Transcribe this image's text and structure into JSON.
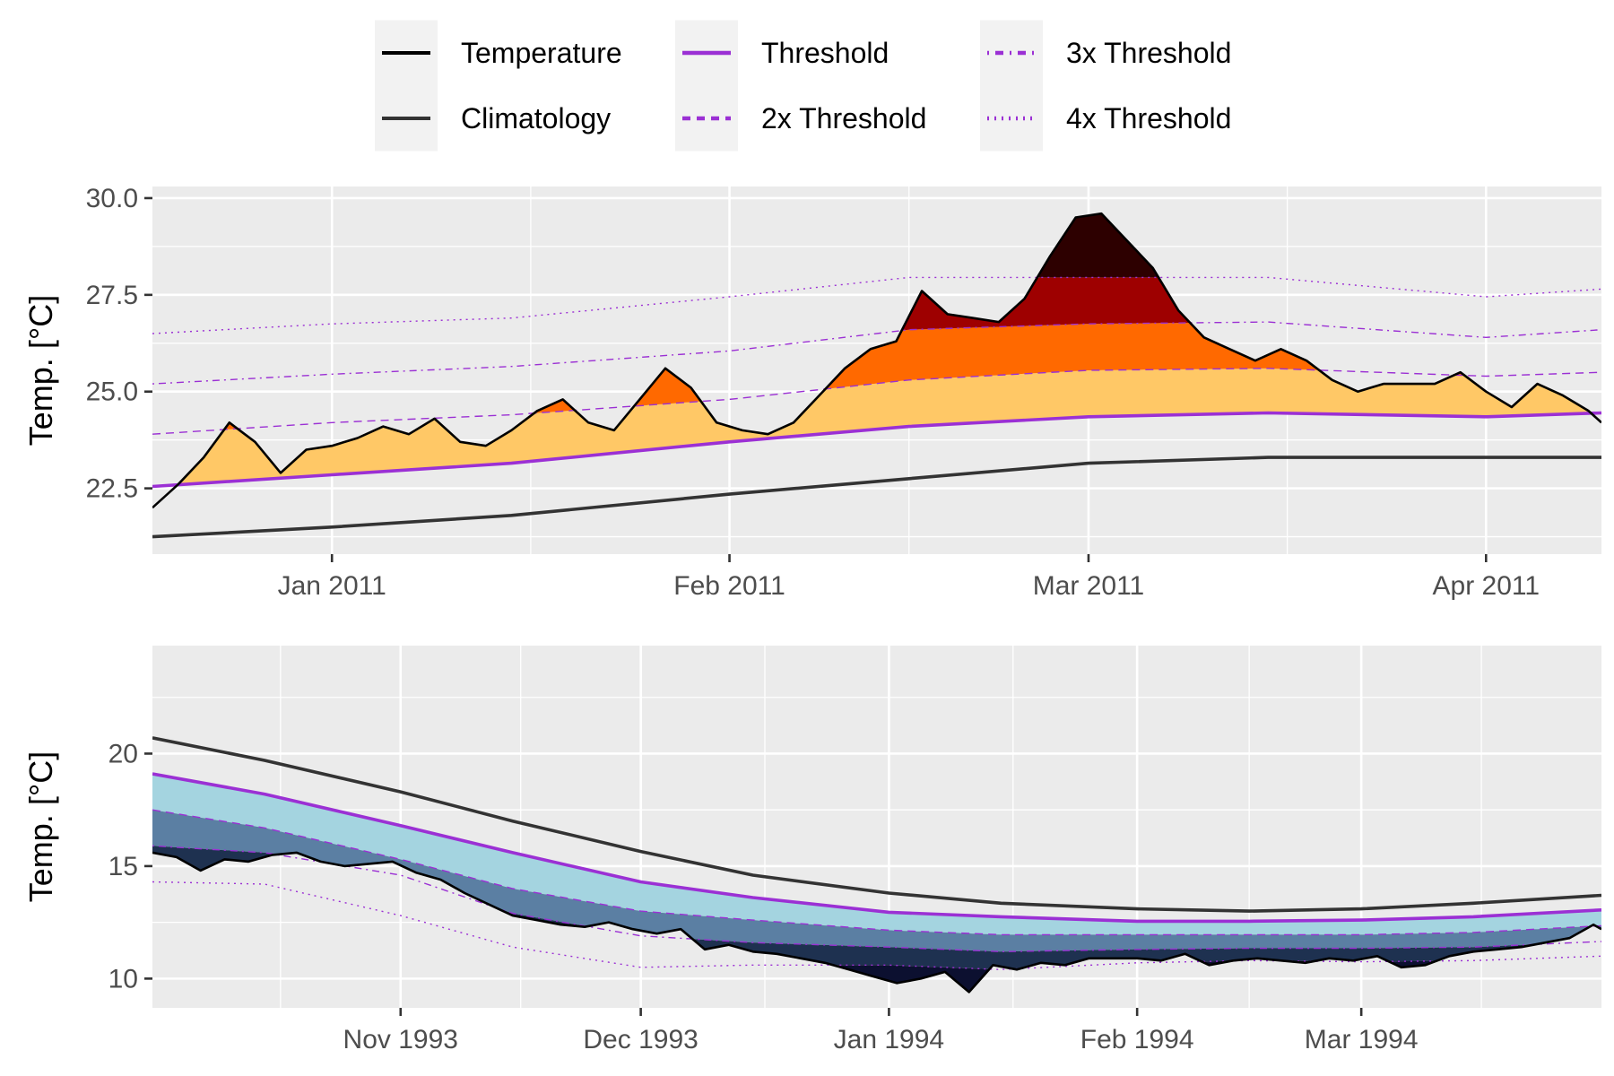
{
  "chart_data": [
    {
      "type": "line",
      "ylabel": "Temp. [°C]",
      "xlabel": "",
      "ylim": [
        20.8,
        30.3
      ],
      "xlim": [
        "2010-12-18",
        "2011-04-10"
      ],
      "yticks": [
        22.5,
        25.0,
        27.5,
        30.0
      ],
      "ytick_labels": [
        "22.5",
        "25.0",
        "27.5",
        "30.0"
      ],
      "xticks": [
        "2011-01-01",
        "2011-02-01",
        "2011-03-01",
        "2011-04-01"
      ],
      "xtick_labels": [
        "Jan 2011",
        "Feb 2011",
        "Mar 2011",
        "Apr 2011"
      ],
      "event_type": "marine heatwave",
      "fill_colors": [
        "#ffc866",
        "#ff6900",
        "#9e0000",
        "#2d0000"
      ],
      "series": [
        {
          "name": "Temperature",
          "x": [
            "2010-12-18",
            "2010-12-20",
            "2010-12-22",
            "2010-12-24",
            "2010-12-26",
            "2010-12-28",
            "2010-12-30",
            "2011-01-01",
            "2011-01-03",
            "2011-01-05",
            "2011-01-07",
            "2011-01-09",
            "2011-01-11",
            "2011-01-13",
            "2011-01-15",
            "2011-01-17",
            "2011-01-19",
            "2011-01-21",
            "2011-01-23",
            "2011-01-25",
            "2011-01-27",
            "2011-01-29",
            "2011-01-31",
            "2011-02-02",
            "2011-02-04",
            "2011-02-06",
            "2011-02-08",
            "2011-02-10",
            "2011-02-12",
            "2011-02-14",
            "2011-02-16",
            "2011-02-18",
            "2011-02-20",
            "2011-02-22",
            "2011-02-24",
            "2011-02-26",
            "2011-02-28",
            "2011-03-02",
            "2011-03-04",
            "2011-03-06",
            "2011-03-08",
            "2011-03-10",
            "2011-03-12",
            "2011-03-14",
            "2011-03-16",
            "2011-03-18",
            "2011-03-20",
            "2011-03-22",
            "2011-03-24",
            "2011-03-26",
            "2011-03-28",
            "2011-03-30",
            "2011-04-01",
            "2011-04-03",
            "2011-04-05",
            "2011-04-07",
            "2011-04-09",
            "2011-04-10"
          ],
          "y": [
            22.0,
            22.6,
            23.3,
            24.2,
            23.7,
            22.9,
            23.5,
            23.6,
            23.8,
            24.1,
            23.9,
            24.3,
            23.7,
            23.6,
            24.0,
            24.5,
            24.8,
            24.2,
            24.0,
            24.8,
            25.6,
            25.1,
            24.2,
            24.0,
            23.9,
            24.2,
            24.9,
            25.6,
            26.1,
            26.3,
            27.6,
            27.0,
            26.9,
            26.8,
            27.4,
            28.5,
            29.5,
            29.6,
            28.9,
            28.2,
            27.1,
            26.4,
            26.1,
            25.8,
            26.1,
            25.8,
            25.3,
            25.0,
            25.2,
            25.2,
            25.2,
            25.5,
            25.0,
            24.6,
            25.2,
            24.9,
            24.5,
            24.2
          ],
          "color": "#000000"
        },
        {
          "name": "Climatology",
          "x": [
            "2010-12-18",
            "2011-01-01",
            "2011-01-15",
            "2011-02-01",
            "2011-02-15",
            "2011-03-01",
            "2011-03-15",
            "2011-04-01",
            "2011-04-10"
          ],
          "y": [
            21.25,
            21.5,
            21.8,
            22.35,
            22.75,
            23.15,
            23.3,
            23.3,
            23.3
          ],
          "color": "#333333"
        },
        {
          "name": "Threshold",
          "x": [
            "2010-12-18",
            "2011-01-01",
            "2011-01-15",
            "2011-02-01",
            "2011-02-15",
            "2011-03-01",
            "2011-03-15",
            "2011-04-01",
            "2011-04-10"
          ],
          "y": [
            22.55,
            22.85,
            23.15,
            23.7,
            24.1,
            24.35,
            24.45,
            24.35,
            24.45
          ],
          "color": "#9b30d4"
        },
        {
          "name": "2x Threshold",
          "x": [
            "2010-12-18",
            "2011-01-01",
            "2011-01-15",
            "2011-02-01",
            "2011-02-15",
            "2011-03-01",
            "2011-03-15",
            "2011-04-01",
            "2011-04-10"
          ],
          "y": [
            23.9,
            24.2,
            24.4,
            24.8,
            25.3,
            25.55,
            25.6,
            25.4,
            25.5
          ],
          "color": "#9b30d4"
        },
        {
          "name": "3x Threshold",
          "x": [
            "2010-12-18",
            "2011-01-01",
            "2011-01-15",
            "2011-02-01",
            "2011-02-15",
            "2011-03-01",
            "2011-03-15",
            "2011-04-01",
            "2011-04-10"
          ],
          "y": [
            25.2,
            25.45,
            25.65,
            26.05,
            26.6,
            26.75,
            26.8,
            26.4,
            26.6
          ],
          "color": "#9b30d4"
        },
        {
          "name": "4x Threshold",
          "x": [
            "2010-12-18",
            "2011-01-01",
            "2011-01-15",
            "2011-02-01",
            "2011-02-15",
            "2011-03-01",
            "2011-03-15",
            "2011-04-01",
            "2011-04-10"
          ],
          "y": [
            26.5,
            26.75,
            26.9,
            27.45,
            27.95,
            27.95,
            27.95,
            27.45,
            27.65
          ],
          "color": "#9b30d4"
        }
      ]
    },
    {
      "type": "line",
      "ylabel": "Temp. [°C]",
      "xlabel": "",
      "ylim": [
        8.7,
        24.8
      ],
      "xlim": [
        "1993-10-01",
        "1994-03-31"
      ],
      "yticks": [
        10,
        15,
        20
      ],
      "ytick_labels": [
        "10",
        "15",
        "20"
      ],
      "xticks": [
        "1993-11-01",
        "1993-12-01",
        "1994-01-01",
        "1994-02-01",
        "1994-03-01"
      ],
      "xtick_labels": [
        "Nov 1993",
        "Dec 1993",
        "Jan 1994",
        "Feb 1994",
        "Mar 1994"
      ],
      "event_type": "marine cold-spell",
      "fill_colors": [
        "#a4d4e0",
        "#5b7fa3",
        "#1e3150",
        "#0c1030"
      ],
      "series": [
        {
          "name": "Temperature",
          "x": [
            "1993-10-01",
            "1993-10-04",
            "1993-10-07",
            "1993-10-10",
            "1993-10-13",
            "1993-10-16",
            "1993-10-19",
            "1993-10-22",
            "1993-10-25",
            "1993-10-28",
            "1993-10-31",
            "1993-11-03",
            "1993-11-06",
            "1993-11-09",
            "1993-11-12",
            "1993-11-15",
            "1993-11-18",
            "1993-11-21",
            "1993-11-24",
            "1993-11-27",
            "1993-11-30",
            "1993-12-03",
            "1993-12-06",
            "1993-12-09",
            "1993-12-12",
            "1993-12-15",
            "1993-12-18",
            "1993-12-21",
            "1993-12-24",
            "1993-12-27",
            "1993-12-30",
            "1994-01-02",
            "1994-01-05",
            "1994-01-08",
            "1994-01-11",
            "1994-01-14",
            "1994-01-17",
            "1994-01-20",
            "1994-01-23",
            "1994-01-26",
            "1994-01-29",
            "1994-02-01",
            "1994-02-04",
            "1994-02-07",
            "1994-02-10",
            "1994-02-13",
            "1994-02-16",
            "1994-02-19",
            "1994-02-22",
            "1994-02-25",
            "1994-02-28",
            "1994-03-03",
            "1994-03-06",
            "1994-03-09",
            "1994-03-12",
            "1994-03-15",
            "1994-03-18",
            "1994-03-21",
            "1994-03-24",
            "1994-03-27",
            "1994-03-30",
            "1994-03-31"
          ],
          "y": [
            15.6,
            15.4,
            14.8,
            15.3,
            15.2,
            15.5,
            15.6,
            15.2,
            15.0,
            15.1,
            15.2,
            14.7,
            14.4,
            13.8,
            13.3,
            12.8,
            12.6,
            12.4,
            12.3,
            12.5,
            12.2,
            12.0,
            12.2,
            11.3,
            11.5,
            11.2,
            11.1,
            10.9,
            10.7,
            10.4,
            10.1,
            9.8,
            10.0,
            10.3,
            9.4,
            10.6,
            10.4,
            10.7,
            10.6,
            10.9,
            10.9,
            10.9,
            10.8,
            11.1,
            10.6,
            10.8,
            10.9,
            10.8,
            10.7,
            10.9,
            10.8,
            11.0,
            10.5,
            10.6,
            11.0,
            11.2,
            11.3,
            11.4,
            11.6,
            11.8,
            12.4,
            12.2
          ],
          "color": "#000000"
        },
        {
          "name": "Climatology",
          "x": [
            "1993-10-01",
            "1993-10-15",
            "1993-11-01",
            "1993-11-15",
            "1993-12-01",
            "1993-12-15",
            "1994-01-01",
            "1994-01-15",
            "1994-02-01",
            "1994-02-15",
            "1994-03-01",
            "1994-03-15",
            "1994-03-31"
          ],
          "y": [
            20.7,
            19.7,
            18.3,
            17.0,
            15.65,
            14.6,
            13.8,
            13.35,
            13.1,
            13.0,
            13.1,
            13.35,
            13.7
          ],
          "color": "#333333"
        },
        {
          "name": "Threshold",
          "x": [
            "1993-10-01",
            "1993-10-15",
            "1993-11-01",
            "1993-11-15",
            "1993-12-01",
            "1993-12-15",
            "1994-01-01",
            "1994-01-15",
            "1994-02-01",
            "1994-02-15",
            "1994-03-01",
            "1994-03-15",
            "1994-03-31"
          ],
          "y": [
            19.1,
            18.2,
            16.8,
            15.6,
            14.3,
            13.6,
            12.95,
            12.75,
            12.55,
            12.55,
            12.6,
            12.75,
            13.05
          ],
          "color": "#9b30d4"
        },
        {
          "name": "2x Threshold",
          "x": [
            "1993-10-01",
            "1993-10-15",
            "1993-11-01",
            "1993-11-15",
            "1993-12-01",
            "1993-12-15",
            "1994-01-01",
            "1994-01-15",
            "1994-02-01",
            "1994-02-15",
            "1994-03-01",
            "1994-03-15",
            "1994-03-31"
          ],
          "y": [
            17.5,
            16.7,
            15.3,
            14.0,
            13.0,
            12.6,
            12.15,
            11.95,
            11.95,
            11.95,
            11.95,
            12.05,
            12.35
          ],
          "color": "#9b30d4"
        },
        {
          "name": "3x Threshold",
          "x": [
            "1993-10-01",
            "1993-10-15",
            "1993-11-01",
            "1993-11-15",
            "1993-12-01",
            "1993-12-15",
            "1994-01-01",
            "1994-01-15",
            "1994-02-01",
            "1994-02-15",
            "1994-03-01",
            "1994-03-15",
            "1994-03-31"
          ],
          "y": [
            15.9,
            15.6,
            14.6,
            12.9,
            11.9,
            11.6,
            11.4,
            11.2,
            11.3,
            11.35,
            11.35,
            11.4,
            11.65
          ],
          "color": "#9b30d4"
        },
        {
          "name": "4x Threshold",
          "x": [
            "1993-10-01",
            "1993-10-15",
            "1993-11-01",
            "1993-11-15",
            "1993-12-01",
            "1993-12-15",
            "1994-01-01",
            "1994-01-15",
            "1994-02-01",
            "1994-02-15",
            "1994-03-01",
            "1994-03-15",
            "1994-03-31"
          ],
          "y": [
            14.3,
            14.2,
            12.8,
            11.4,
            10.5,
            10.6,
            10.6,
            10.4,
            10.7,
            10.8,
            10.75,
            10.8,
            11.0
          ],
          "color": "#9b30d4"
        }
      ]
    }
  ],
  "legend": {
    "placement": "top",
    "entries": [
      {
        "label": "Temperature",
        "color": "#000000",
        "linestyle": "solid"
      },
      {
        "label": "Climatology",
        "color": "#333333",
        "linestyle": "solid"
      },
      {
        "label": "Threshold",
        "color": "#9b30d4",
        "linestyle": "solid"
      },
      {
        "label": "2x Threshold",
        "color": "#9b30d4",
        "linestyle": "dashed"
      },
      {
        "label": "3x Threshold",
        "color": "#9b30d4",
        "linestyle": "dotdash"
      },
      {
        "label": "4x Threshold",
        "color": "#9b30d4",
        "linestyle": "dotted"
      }
    ]
  }
}
